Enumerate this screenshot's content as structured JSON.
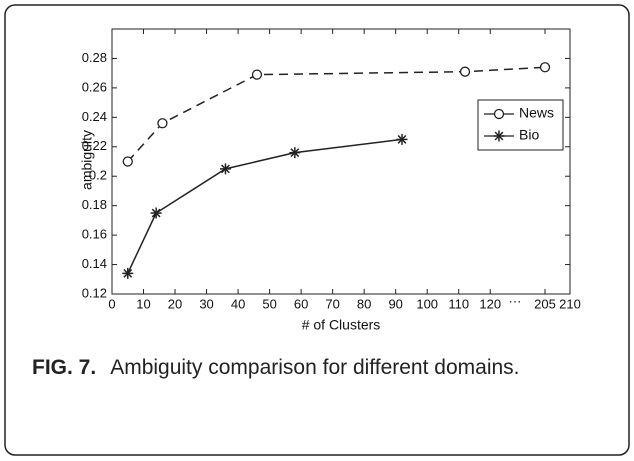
{
  "chart_data": {
    "type": "line",
    "x_label": "# of Clusters",
    "y_label": "ambiguity",
    "xlim": [
      0,
      210
    ],
    "x_break": [
      125,
      200
    ],
    "x_break_label": "···",
    "xticks": [
      0,
      10,
      20,
      30,
      40,
      50,
      60,
      70,
      80,
      90,
      100,
      110,
      120,
      205,
      210
    ],
    "ylim": [
      0.12,
      0.3
    ],
    "yticks": [
      0.12,
      0.14,
      0.16,
      0.18,
      0.2,
      0.22,
      0.24,
      0.26,
      0.28
    ],
    "legend": "upper right",
    "series": [
      {
        "name": "News",
        "color": "#222222",
        "dash": true,
        "marker": "circle",
        "x": [
          5,
          16,
          46,
          112,
          205
        ],
        "values": [
          0.21,
          0.236,
          0.269,
          0.271,
          0.274
        ]
      },
      {
        "name": "Bio",
        "color": "#222222",
        "dash": false,
        "marker": "star",
        "x": [
          5,
          14,
          36,
          58,
          92
        ],
        "values": [
          0.134,
          0.175,
          0.205,
          0.216,
          0.225
        ]
      }
    ]
  },
  "figure_label": "FIG. 7.",
  "caption": "Ambiguity comparison for different domains."
}
